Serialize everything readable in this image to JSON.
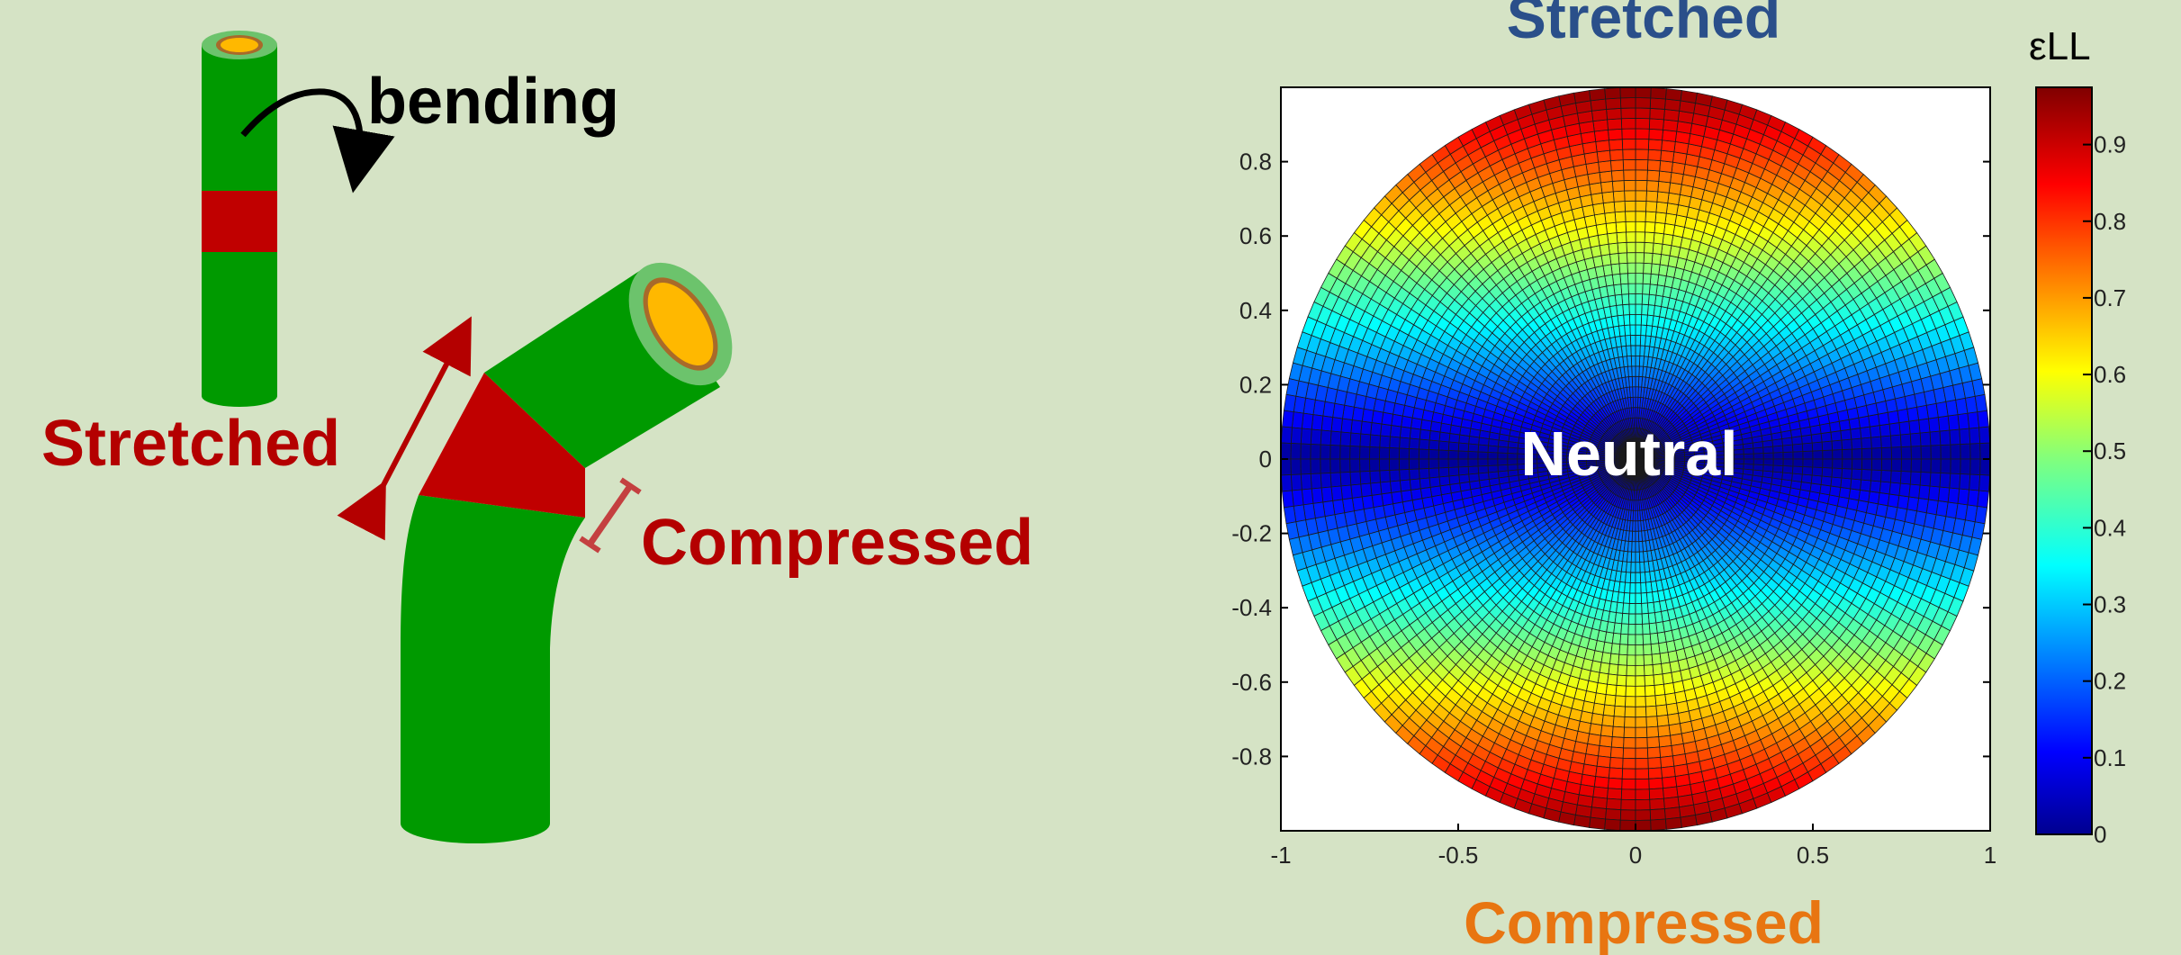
{
  "diagram": {
    "bending_label": "bending",
    "stretched_label": "Stretched",
    "compressed_label": "Compressed"
  },
  "plot": {
    "top_label": "Stretched",
    "bottom_label": "Compressed",
    "center_label": "Neutral",
    "colorbar_title": "εLL",
    "x_ticks": [
      "-1",
      "-0.5",
      "0",
      "0.5",
      "1"
    ],
    "y_ticks": [
      "0.8",
      "0.6",
      "0.4",
      "0.2",
      "0",
      "-0.2",
      "-0.4",
      "-0.6",
      "-0.8"
    ],
    "colorbar_ticks": [
      "0.9",
      "0.8",
      "0.7",
      "0.6",
      "0.5",
      "0.4",
      "0.3",
      "0.2",
      "0.1",
      "0"
    ]
  },
  "colors": {
    "background": "#d5e3c5",
    "tube_green": "#009a00",
    "tube_rim": "#6cc36c",
    "lumen_yellow": "#ffb800",
    "band_red": "#c00000",
    "stretched_top_blue": "#2a4f8a",
    "compressed_orange": "#e87511",
    "label_red": "#b40000"
  }
}
